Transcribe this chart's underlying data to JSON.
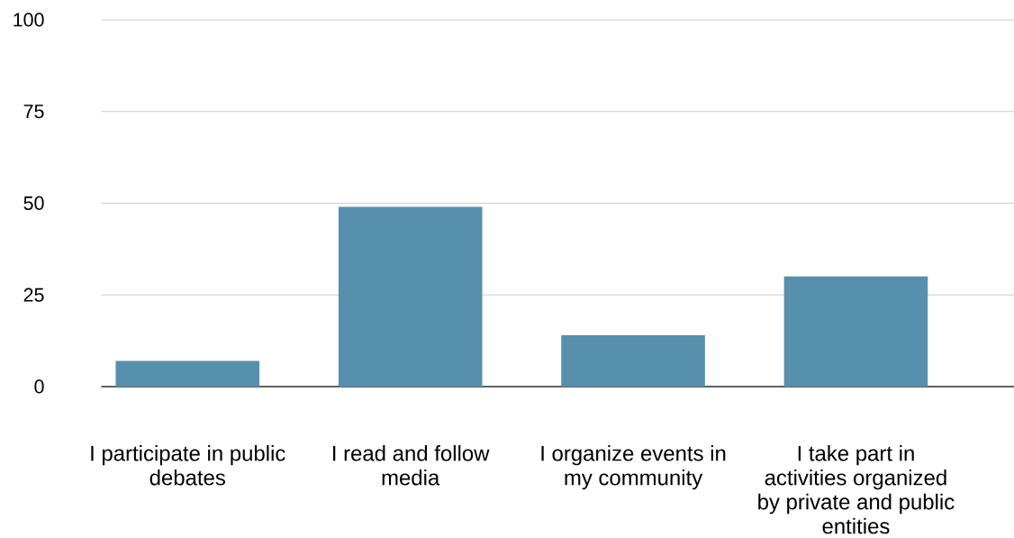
{
  "chart_data": {
    "type": "bar",
    "categories": [
      "I participate in public debates",
      "I read and follow media",
      "I organize events in my community",
      "I take part in activities organized by private and public entities"
    ],
    "values": [
      7,
      49,
      14,
      30
    ],
    "color": "#5790ad",
    "ylim": [
      0,
      100
    ],
    "yticks": [
      0,
      25,
      50,
      75,
      100
    ],
    "grid": "y"
  }
}
